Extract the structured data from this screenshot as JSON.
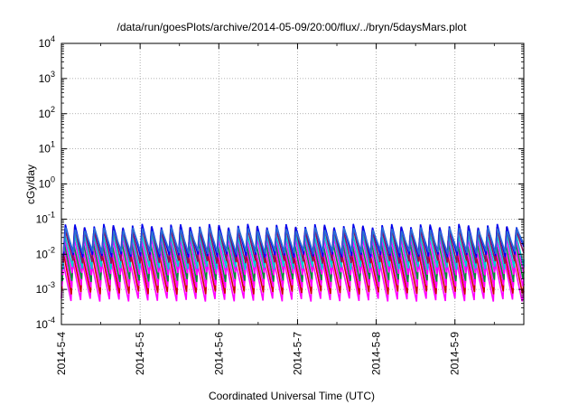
{
  "chart_data": {
    "type": "line",
    "title": "/data/run/goesPlots/archive/2014-05-09/20:00/flux/../bryn/5daysMars.plot",
    "xlabel": "Coordinated Universal Time (UTC)",
    "ylabel": "cGy/day",
    "x_axis": {
      "unit": "days",
      "range": [
        "2014-05-04",
        "2014-05-09 21:00"
      ],
      "ticks": [
        "2014-5-4",
        "2014-5-5",
        "2014-5-6",
        "2014-5-7",
        "2014-5-8",
        "2014-5-9"
      ]
    },
    "y_axis": {
      "scale": "log",
      "range": [
        0.0001,
        10000
      ],
      "ticks": [
        {
          "base": "10",
          "exp": "-4"
        },
        {
          "base": "10",
          "exp": "-3"
        },
        {
          "base": "10",
          "exp": "-2"
        },
        {
          "base": "10",
          "exp": "-1"
        },
        {
          "base": "10",
          "exp": "0"
        },
        {
          "base": "10",
          "exp": "1"
        },
        {
          "base": "10",
          "exp": "2"
        },
        {
          "base": "10",
          "exp": "3"
        },
        {
          "base": "10",
          "exp": "4"
        }
      ]
    },
    "grid": true,
    "legend": "none",
    "pattern": {
      "cycles_per_day": 8.2,
      "note_peak_value": 0.05,
      "note_trough_value": 0.005
    },
    "series": [
      {
        "color": "#ff00ff",
        "peak": 0.006,
        "trough": 0.0005
      },
      {
        "color": "#cc0000",
        "peak": 0.01,
        "trough": 0.0008
      },
      {
        "color": "#ff00ff",
        "peak": 0.015,
        "trough": 0.0012
      },
      {
        "color": "#0a8a3a",
        "peak": 0.022,
        "trough": 0.0018
      },
      {
        "color": "#ff00ff",
        "peak": 0.032,
        "trough": 0.0028
      },
      {
        "color": "#00cfcf",
        "peak": 0.042,
        "trough": 0.004
      },
      {
        "color": "#8c1060",
        "peak": 0.055,
        "trough": 0.006
      },
      {
        "color": "#0000ee",
        "peak": 0.065,
        "trough": 0.009
      },
      {
        "color": "#2b6fd6",
        "peak": 0.052,
        "trough": 0.011
      }
    ]
  }
}
